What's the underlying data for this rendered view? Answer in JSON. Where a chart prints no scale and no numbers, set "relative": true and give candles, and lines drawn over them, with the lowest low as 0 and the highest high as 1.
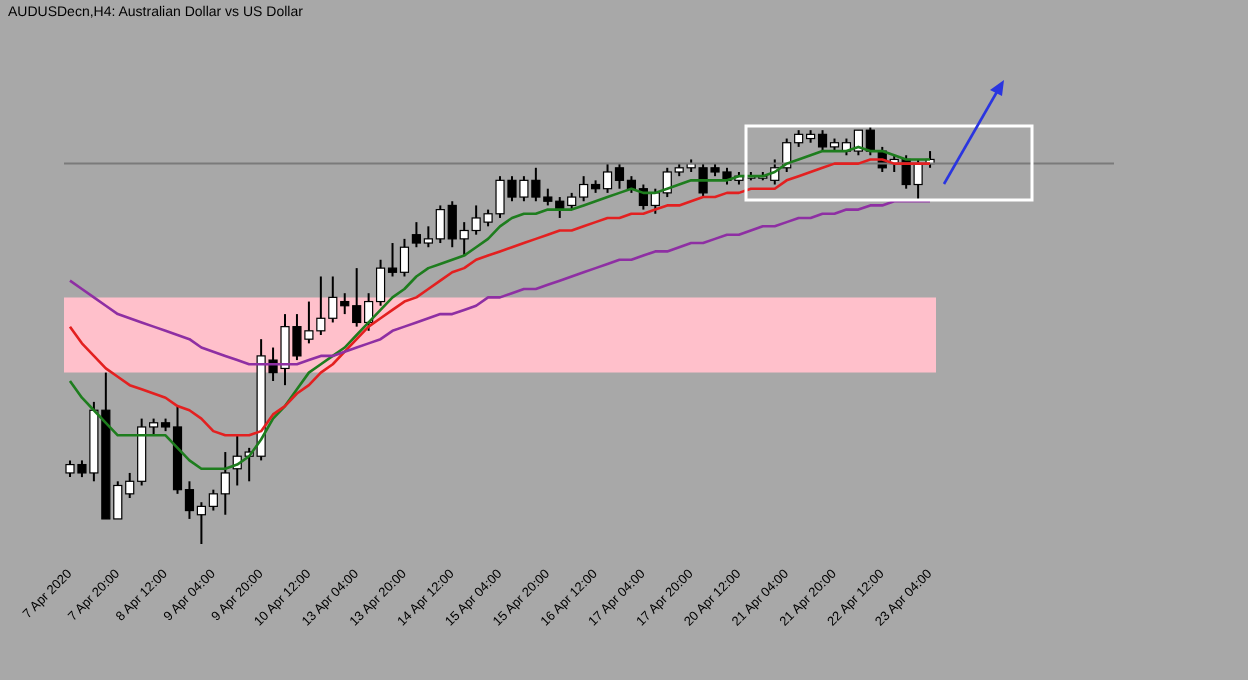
{
  "chart_data": {
    "type": "candlestick",
    "title": "AUDUSDecn,H4: Australian Dollar vs US Dollar",
    "relative": true,
    "categories": [
      "7 Apr 2020",
      null,
      null,
      null,
      "7 Apr 20:00",
      null,
      null,
      null,
      "8 Apr 12:00",
      null,
      null,
      null,
      "9 Apr 04:00",
      null,
      null,
      null,
      "9 Apr 20:00",
      null,
      null,
      null,
      "10 Apr 12:00",
      null,
      null,
      null,
      "13 Apr 04:00",
      null,
      null,
      null,
      "13 Apr 20:00",
      null,
      null,
      null,
      "14 Apr 12:00",
      null,
      null,
      null,
      "15 Apr 04:00",
      null,
      null,
      null,
      "15 Apr 20:00",
      null,
      null,
      null,
      "16 Apr 12:00",
      null,
      null,
      null,
      "17 Apr 04:00",
      null,
      null,
      null,
      "17 Apr 20:00",
      null,
      null,
      null,
      "20 Apr 12:00",
      null,
      null,
      null,
      "21 Apr 04:00",
      null,
      null,
      null,
      "21 Apr 20:00",
      null,
      null,
      null,
      "22 Apr 12:00",
      null,
      null,
      null,
      "23 Apr 04:00"
    ],
    "ohlc": [
      [
        0.17,
        0.2,
        0.16,
        0.19
      ],
      [
        0.19,
        0.2,
        0.16,
        0.17
      ],
      [
        0.17,
        0.34,
        0.15,
        0.32
      ],
      [
        0.32,
        0.41,
        0.06,
        0.06
      ],
      [
        0.06,
        0.15,
        0.06,
        0.14
      ],
      [
        0.12,
        0.17,
        0.11,
        0.15
      ],
      [
        0.15,
        0.3,
        0.14,
        0.28
      ],
      [
        0.28,
        0.3,
        0.26,
        0.29
      ],
      [
        0.29,
        0.3,
        0.27,
        0.28
      ],
      [
        0.28,
        0.33,
        0.12,
        0.13
      ],
      [
        0.13,
        0.15,
        0.06,
        0.08
      ],
      [
        0.07,
        0.1,
        0,
        0.09
      ],
      [
        0.09,
        0.13,
        0.08,
        0.12
      ],
      [
        0.12,
        0.22,
        0.07,
        0.17
      ],
      [
        0.18,
        0.26,
        0.14,
        0.21
      ],
      [
        0.21,
        0.23,
        0.15,
        0.22
      ],
      [
        0.21,
        0.49,
        0.2,
        0.45
      ],
      [
        0.44,
        0.47,
        0.39,
        0.41
      ],
      [
        0.42,
        0.55,
        0.38,
        0.52
      ],
      [
        0.52,
        0.55,
        0.44,
        0.45
      ],
      [
        0.49,
        0.58,
        0.48,
        0.51
      ],
      [
        0.51,
        0.64,
        0.5,
        0.54
      ],
      [
        0.54,
        0.64,
        0.53,
        0.59
      ],
      [
        0.58,
        0.6,
        0.55,
        0.57
      ],
      [
        0.57,
        0.66,
        0.52,
        0.53
      ],
      [
        0.53,
        0.6,
        0.51,
        0.58
      ],
      [
        0.58,
        0.68,
        0.57,
        0.66
      ],
      [
        0.66,
        0.72,
        0.64,
        0.65
      ],
      [
        0.65,
        0.73,
        0.64,
        0.71
      ],
      [
        0.74,
        0.77,
        0.71,
        0.72
      ],
      [
        0.72,
        0.76,
        0.71,
        0.73
      ],
      [
        0.73,
        0.81,
        0.72,
        0.8
      ],
      [
        0.81,
        0.82,
        0.71,
        0.73
      ],
      [
        0.73,
        0.77,
        0.69,
        0.75
      ],
      [
        0.75,
        0.81,
        0.74,
        0.78
      ],
      [
        0.77,
        0.8,
        0.76,
        0.79
      ],
      [
        0.79,
        0.88,
        0.78,
        0.87
      ],
      [
        0.87,
        0.88,
        0.82,
        0.83
      ],
      [
        0.83,
        0.88,
        0.82,
        0.87
      ],
      [
        0.87,
        0.9,
        0.82,
        0.83
      ],
      [
        0.83,
        0.85,
        0.81,
        0.82
      ],
      [
        0.82,
        0.83,
        0.78,
        0.8
      ],
      [
        0.81,
        0.84,
        0.8,
        0.83
      ],
      [
        0.83,
        0.88,
        0.82,
        0.86
      ],
      [
        0.86,
        0.87,
        0.84,
        0.85
      ],
      [
        0.85,
        0.91,
        0.84,
        0.89
      ],
      [
        0.9,
        0.91,
        0.85,
        0.87
      ],
      [
        0.87,
        0.88,
        0.84,
        0.85
      ],
      [
        0.85,
        0.86,
        0.8,
        0.81
      ],
      [
        0.81,
        0.85,
        0.79,
        0.84
      ],
      [
        0.84,
        0.9,
        0.83,
        0.89
      ],
      [
        0.89,
        0.91,
        0.88,
        0.9
      ],
      [
        0.9,
        0.92,
        0.89,
        0.91
      ],
      [
        0.9,
        0.91,
        0.83,
        0.84
      ],
      [
        0.9,
        0.91,
        0.88,
        0.89
      ],
      [
        0.89,
        0.9,
        0.86,
        0.87
      ],
      [
        0.87,
        0.89,
        0.86,
        0.88
      ],
      [
        0.88,
        0.89,
        0.87,
        0.88
      ],
      [
        0.88,
        0.89,
        0.87,
        0.88
      ],
      [
        0.87,
        0.92,
        0.86,
        0.9
      ],
      [
        0.9,
        0.97,
        0.89,
        0.96
      ],
      [
        0.96,
        0.99,
        0.95,
        0.98
      ],
      [
        0.97,
        0.99,
        0.96,
        0.98
      ],
      [
        0.98,
        0.99,
        0.94,
        0.95
      ],
      [
        0.95,
        0.97,
        0.94,
        0.96
      ],
      [
        0.94,
        0.97,
        0.93,
        0.96
      ],
      [
        0.94,
        0.99,
        0.93,
        0.99
      ],
      [
        0.99,
        1,
        0.93,
        0.94
      ],
      [
        0.94,
        0.95,
        0.89,
        0.9
      ],
      [
        0.91,
        0.93,
        0.89,
        0.92
      ],
      [
        0.92,
        0.93,
        0.85,
        0.86
      ],
      [
        0.86,
        0.92,
        0.82,
        0.91
      ],
      [
        0.91,
        0.94,
        0.9,
        0.92
      ]
    ],
    "series": [
      {
        "type": "line",
        "color": "#1e7d1e",
        "values": [
          0.39,
          0.35,
          0.32,
          0.29,
          0.26,
          0.26,
          0.26,
          0.26,
          0.26,
          0.23,
          0.2,
          0.18,
          0.18,
          0.18,
          0.19,
          0.21,
          0.25,
          0.3,
          0.33,
          0.37,
          0.41,
          0.43,
          0.45,
          0.47,
          0.5,
          0.53,
          0.56,
          0.59,
          0.61,
          0.64,
          0.66,
          0.67,
          0.68,
          0.69,
          0.71,
          0.73,
          0.76,
          0.78,
          0.79,
          0.79,
          0.8,
          0.8,
          0.8,
          0.81,
          0.82,
          0.83,
          0.84,
          0.85,
          0.84,
          0.84,
          0.85,
          0.86,
          0.87,
          0.87,
          0.87,
          0.87,
          0.88,
          0.88,
          0.88,
          0.89,
          0.91,
          0.92,
          0.93,
          0.94,
          0.94,
          0.94,
          0.95,
          0.94,
          0.94,
          0.93,
          0.92,
          0.92,
          0.92
        ]
      },
      {
        "type": "line",
        "color": "#e32020",
        "values": [
          0.52,
          0.48,
          0.45,
          0.42,
          0.4,
          0.38,
          0.37,
          0.36,
          0.35,
          0.33,
          0.32,
          0.3,
          0.27,
          0.26,
          0.26,
          0.26,
          0.27,
          0.31,
          0.33,
          0.36,
          0.38,
          0.41,
          0.43,
          0.46,
          0.49,
          0.52,
          0.54,
          0.56,
          0.58,
          0.59,
          0.61,
          0.63,
          0.65,
          0.66,
          0.68,
          0.69,
          0.7,
          0.71,
          0.72,
          0.73,
          0.74,
          0.75,
          0.75,
          0.76,
          0.77,
          0.78,
          0.78,
          0.79,
          0.79,
          0.8,
          0.81,
          0.81,
          0.82,
          0.83,
          0.83,
          0.84,
          0.84,
          0.85,
          0.85,
          0.85,
          0.87,
          0.88,
          0.89,
          0.9,
          0.91,
          0.91,
          0.91,
          0.92,
          0.92,
          0.91,
          0.91,
          0.91,
          0.91
        ]
      },
      {
        "type": "line",
        "color": "#8e2fa3",
        "values": [
          0.63,
          0.61,
          0.59,
          0.57,
          0.55,
          0.54,
          0.53,
          0.52,
          0.51,
          0.5,
          0.49,
          0.47,
          0.46,
          0.45,
          0.44,
          0.43,
          0.43,
          0.43,
          0.43,
          0.43,
          0.44,
          0.45,
          0.45,
          0.46,
          0.47,
          0.48,
          0.49,
          0.51,
          0.52,
          0.53,
          0.54,
          0.55,
          0.55,
          0.56,
          0.57,
          0.59,
          0.59,
          0.6,
          0.61,
          0.61,
          0.62,
          0.63,
          0.64,
          0.65,
          0.66,
          0.67,
          0.68,
          0.68,
          0.69,
          0.7,
          0.7,
          0.71,
          0.72,
          0.72,
          0.73,
          0.74,
          0.74,
          0.75,
          0.76,
          0.76,
          0.77,
          0.78,
          0.78,
          0.79,
          0.79,
          0.8,
          0.8,
          0.81,
          0.81,
          0.82,
          0.82,
          0.82,
          0.82
        ]
      }
    ],
    "bands": [
      {
        "axis": "y",
        "from": 0.41,
        "to": 0.59,
        "color": "#ffc0cb"
      }
    ],
    "ref_lines": [
      {
        "axis": "y",
        "value": 0.91,
        "color": "#7a7a7a"
      }
    ]
  }
}
